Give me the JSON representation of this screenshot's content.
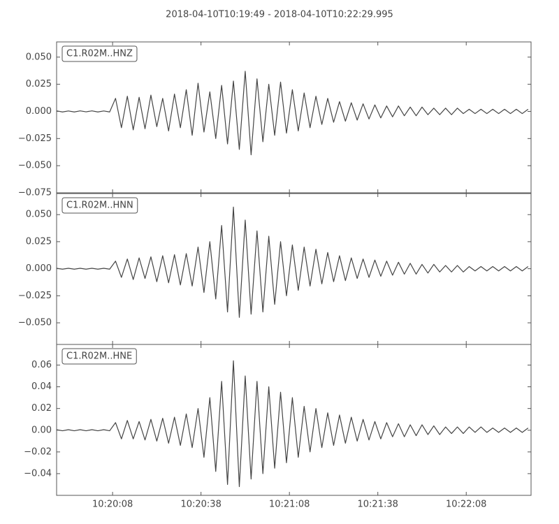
{
  "chart_data": [
    {
      "type": "line",
      "title": "2018-04-10T10:19:49  -  2018-04-10T10:22:29.995",
      "xlim": [
        "10:19:49",
        "10:22:29.995"
      ],
      "x": [
        "10:19:49",
        "10:19:51",
        "10:19:53",
        "10:19:55",
        "10:19:57",
        "10:19:59",
        "10:20:01",
        "10:20:03",
        "10:20:05",
        "10:20:07",
        "10:20:09",
        "10:20:11",
        "10:20:13",
        "10:20:15",
        "10:20:17",
        "10:20:19",
        "10:20:21",
        "10:20:23",
        "10:20:25",
        "10:20:27",
        "10:20:29",
        "10:20:31",
        "10:20:33",
        "10:20:35",
        "10:20:37",
        "10:20:39",
        "10:20:41",
        "10:20:43",
        "10:20:45",
        "10:20:47",
        "10:20:49",
        "10:20:51",
        "10:20:53",
        "10:20:55",
        "10:20:57",
        "10:20:59",
        "10:21:01",
        "10:21:03",
        "10:21:05",
        "10:21:07",
        "10:21:09",
        "10:21:11",
        "10:21:13",
        "10:21:15",
        "10:21:17",
        "10:21:19",
        "10:21:21",
        "10:21:23",
        "10:21:25",
        "10:21:27",
        "10:21:29",
        "10:21:31",
        "10:21:33",
        "10:21:35",
        "10:21:37",
        "10:21:39",
        "10:21:41",
        "10:21:43",
        "10:21:45",
        "10:21:47",
        "10:21:49",
        "10:21:51",
        "10:21:53",
        "10:21:55",
        "10:21:57",
        "10:21:59",
        "10:22:01",
        "10:22:03",
        "10:22:05",
        "10:22:07",
        "10:22:09",
        "10:22:11",
        "10:22:13",
        "10:22:15",
        "10:22:17",
        "10:22:19",
        "10:22:21",
        "10:22:23",
        "10:22:25",
        "10:22:27",
        "10:22:29"
      ],
      "series": [
        {
          "name": "C1.R02M..HNZ",
          "color": "#444444",
          "values": [
            0.0005,
            -0.0005,
            0.0004,
            -0.0005,
            0.0005,
            -0.0004,
            0.0005,
            -0.0005,
            0.0004,
            -0.0005,
            0.012,
            -0.015,
            0.014,
            -0.017,
            0.013,
            -0.016,
            0.015,
            -0.014,
            0.012,
            -0.018,
            0.016,
            -0.015,
            0.02,
            -0.022,
            0.026,
            -0.019,
            0.018,
            -0.025,
            0.024,
            -0.03,
            0.028,
            -0.035,
            0.037,
            -0.04,
            0.03,
            -0.028,
            0.025,
            -0.022,
            0.027,
            -0.02,
            0.02,
            -0.018,
            0.017,
            -0.015,
            0.014,
            -0.012,
            0.012,
            -0.01,
            0.009,
            -0.009,
            0.008,
            -0.008,
            0.007,
            -0.007,
            0.006,
            -0.006,
            0.005,
            -0.005,
            0.005,
            -0.004,
            0.004,
            -0.004,
            0.004,
            -0.003,
            0.003,
            -0.003,
            0.003,
            -0.003,
            0.003,
            -0.002,
            0.002,
            -0.002,
            0.002,
            -0.002,
            0.002,
            -0.002,
            0.002,
            -0.002,
            0.002,
            -0.002,
            0.002
          ]
        }
      ],
      "ylim": [
        -0.075,
        0.064
      ],
      "yticks": [
        {
          "value": -0.075,
          "label": "−0.075"
        },
        {
          "value": -0.05,
          "label": "−0.050"
        },
        {
          "value": -0.025,
          "label": "−0.025"
        },
        {
          "value": 0,
          "label": "0.000"
        },
        {
          "value": 0.025,
          "label": "0.025"
        },
        {
          "value": 0.05,
          "label": "0.050"
        }
      ]
    },
    {
      "type": "line",
      "xlim": [
        "10:19:49",
        "10:22:29.995"
      ],
      "x": [
        "10:19:49",
        "10:19:51",
        "10:19:53",
        "10:19:55",
        "10:19:57",
        "10:19:59",
        "10:20:01",
        "10:20:03",
        "10:20:05",
        "10:20:07",
        "10:20:09",
        "10:20:11",
        "10:20:13",
        "10:20:15",
        "10:20:17",
        "10:20:19",
        "10:20:21",
        "10:20:23",
        "10:20:25",
        "10:20:27",
        "10:20:29",
        "10:20:31",
        "10:20:33",
        "10:20:35",
        "10:20:37",
        "10:20:39",
        "10:20:41",
        "10:20:43",
        "10:20:45",
        "10:20:47",
        "10:20:49",
        "10:20:51",
        "10:20:53",
        "10:20:55",
        "10:20:57",
        "10:20:59",
        "10:21:01",
        "10:21:03",
        "10:21:05",
        "10:21:07",
        "10:21:09",
        "10:21:11",
        "10:21:13",
        "10:21:15",
        "10:21:17",
        "10:21:19",
        "10:21:21",
        "10:21:23",
        "10:21:25",
        "10:21:27",
        "10:21:29",
        "10:21:31",
        "10:21:33",
        "10:21:35",
        "10:21:37",
        "10:21:39",
        "10:21:41",
        "10:21:43",
        "10:21:45",
        "10:21:47",
        "10:21:49",
        "10:21:51",
        "10:21:53",
        "10:21:55",
        "10:21:57",
        "10:21:59",
        "10:22:01",
        "10:22:03",
        "10:22:05",
        "10:22:07",
        "10:22:09",
        "10:22:11",
        "10:22:13",
        "10:22:15",
        "10:22:17",
        "10:22:19",
        "10:22:21",
        "10:22:23",
        "10:22:25",
        "10:22:27",
        "10:22:29"
      ],
      "series": [
        {
          "name": "C1.R02M..HNN",
          "color": "#444444",
          "values": [
            0.0004,
            -0.0004,
            0.0004,
            -0.0004,
            0.0004,
            -0.0004,
            0.0004,
            -0.0004,
            0.0004,
            -0.0004,
            0.007,
            -0.008,
            0.009,
            -0.01,
            0.01,
            -0.009,
            0.011,
            -0.012,
            0.012,
            -0.013,
            0.013,
            -0.015,
            0.014,
            -0.016,
            0.02,
            -0.022,
            0.025,
            -0.028,
            0.04,
            -0.04,
            0.057,
            -0.045,
            0.045,
            -0.042,
            0.035,
            -0.04,
            0.03,
            -0.033,
            0.025,
            -0.025,
            0.022,
            -0.02,
            0.02,
            -0.016,
            0.018,
            -0.014,
            0.015,
            -0.012,
            0.012,
            -0.011,
            0.01,
            -0.009,
            0.009,
            -0.008,
            0.008,
            -0.007,
            0.007,
            -0.006,
            0.006,
            -0.005,
            0.005,
            -0.005,
            0.004,
            -0.004,
            0.004,
            -0.003,
            0.003,
            -0.003,
            0.003,
            -0.003,
            0.002,
            -0.002,
            0.002,
            -0.002,
            0.002,
            -0.002,
            0.002,
            -0.002,
            0.002,
            -0.002,
            0.002
          ]
        }
      ],
      "ylim": [
        -0.07,
        0.0695
      ],
      "yticks": [
        {
          "value": -0.05,
          "label": "−0.050"
        },
        {
          "value": -0.025,
          "label": "−0.025"
        },
        {
          "value": 0,
          "label": "0.000"
        },
        {
          "value": 0.025,
          "label": "0.025"
        },
        {
          "value": 0.05,
          "label": "0.050"
        }
      ]
    },
    {
      "type": "line",
      "xlim": [
        "10:19:49",
        "10:22:29.995"
      ],
      "x": [
        "10:19:49",
        "10:19:51",
        "10:19:53",
        "10:19:55",
        "10:19:57",
        "10:19:59",
        "10:20:01",
        "10:20:03",
        "10:20:05",
        "10:20:07",
        "10:20:09",
        "10:20:11",
        "10:20:13",
        "10:20:15",
        "10:20:17",
        "10:20:19",
        "10:20:21",
        "10:20:23",
        "10:20:25",
        "10:20:27",
        "10:20:29",
        "10:20:31",
        "10:20:33",
        "10:20:35",
        "10:20:37",
        "10:20:39",
        "10:20:41",
        "10:20:43",
        "10:20:45",
        "10:20:47",
        "10:20:49",
        "10:20:51",
        "10:20:53",
        "10:20:55",
        "10:20:57",
        "10:20:59",
        "10:21:01",
        "10:21:03",
        "10:21:05",
        "10:21:07",
        "10:21:09",
        "10:21:11",
        "10:21:13",
        "10:21:15",
        "10:21:17",
        "10:21:19",
        "10:21:21",
        "10:21:23",
        "10:21:25",
        "10:21:27",
        "10:21:29",
        "10:21:31",
        "10:21:33",
        "10:21:35",
        "10:21:37",
        "10:21:39",
        "10:21:41",
        "10:21:43",
        "10:21:45",
        "10:21:47",
        "10:21:49",
        "10:21:51",
        "10:21:53",
        "10:21:55",
        "10:21:57",
        "10:21:59",
        "10:22:01",
        "10:22:03",
        "10:22:05",
        "10:22:07",
        "10:22:09",
        "10:22:11",
        "10:22:13",
        "10:22:15",
        "10:22:17",
        "10:22:19",
        "10:22:21",
        "10:22:23",
        "10:22:25",
        "10:22:27",
        "10:22:29"
      ],
      "series": [
        {
          "name": "C1.R02M..HNE",
          "color": "#444444",
          "values": [
            0.0005,
            -0.0005,
            0.0005,
            -0.0005,
            0.0005,
            -0.0005,
            0.0005,
            -0.0005,
            0.0005,
            -0.0005,
            0.007,
            -0.008,
            0.009,
            -0.008,
            0.008,
            -0.009,
            0.01,
            -0.01,
            0.011,
            -0.012,
            0.012,
            -0.014,
            0.015,
            -0.016,
            0.02,
            -0.025,
            0.03,
            -0.038,
            0.045,
            -0.05,
            0.064,
            -0.052,
            0.05,
            -0.045,
            0.045,
            -0.04,
            0.04,
            -0.035,
            0.035,
            -0.03,
            0.03,
            -0.025,
            0.022,
            -0.02,
            0.02,
            -0.016,
            0.016,
            -0.014,
            0.014,
            -0.012,
            0.012,
            -0.01,
            0.01,
            -0.009,
            0.008,
            -0.008,
            0.007,
            -0.006,
            0.006,
            -0.006,
            0.005,
            -0.005,
            0.005,
            -0.004,
            0.004,
            -0.004,
            0.003,
            -0.003,
            0.003,
            -0.003,
            0.003,
            -0.002,
            0.003,
            -0.002,
            0.002,
            -0.002,
            0.002,
            -0.002,
            0.002,
            -0.002,
            0.002
          ]
        }
      ],
      "ylim": [
        -0.06,
        0.079
      ],
      "yticks": [
        {
          "value": -0.04,
          "label": "−0.04"
        },
        {
          "value": -0.02,
          "label": "−0.02"
        },
        {
          "value": 0,
          "label": "0.00"
        },
        0.02,
        0.04,
        0.06
      ],
      "xticks": [
        "10:20:08",
        "10:20:38",
        "10:21:08",
        "10:21:38",
        "10:22:08"
      ]
    }
  ]
}
